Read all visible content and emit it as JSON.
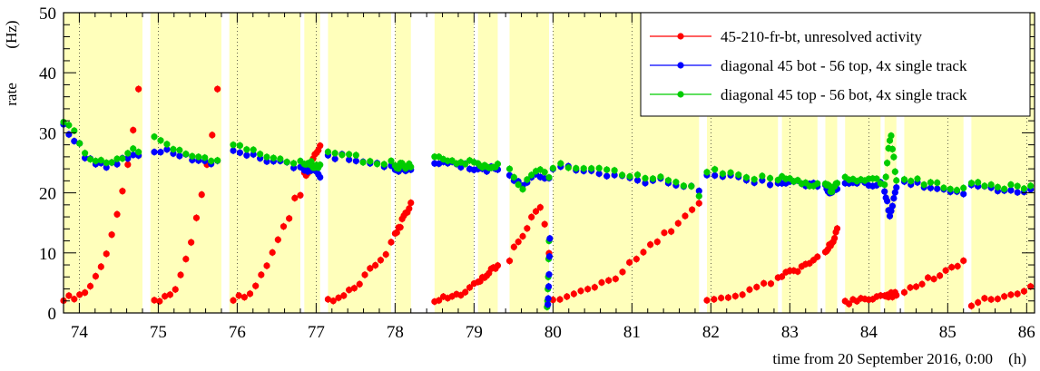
{
  "chart_data": {
    "type": "scatter",
    "title": "",
    "xlabel": "time from 20 September 2016, 0:00",
    "xunit": "(h)",
    "ylabel": "rate",
    "yunit": "(Hz)",
    "xlim": [
      73.8,
      86.1
    ],
    "ylim": [
      0,
      50
    ],
    "xticks": [
      74,
      75,
      76,
      77,
      78,
      79,
      80,
      81,
      82,
      83,
      84,
      85,
      86
    ],
    "yticks": [
      0,
      10,
      20,
      30,
      40,
      50
    ],
    "grid": "vertical dotted",
    "legend_position": "top-right",
    "background_bands": [
      [
        73.8,
        74.8
      ],
      [
        74.9,
        75.8
      ],
      [
        75.9,
        76.8
      ],
      [
        76.85,
        77.05
      ],
      [
        77.15,
        77.95
      ],
      [
        78.0,
        78.2
      ],
      [
        78.5,
        79.0
      ],
      [
        79.05,
        79.3
      ],
      [
        79.45,
        79.95
      ],
      [
        80.0,
        81.85
      ],
      [
        81.95,
        82.85
      ],
      [
        82.9,
        83.35
      ],
      [
        83.45,
        83.6
      ],
      [
        83.7,
        84.15
      ],
      [
        84.2,
        84.35
      ],
      [
        84.45,
        85.2
      ],
      [
        85.3,
        86.1
      ]
    ],
    "series": [
      {
        "name": "45-210-fr-bt, unresolved activity",
        "color": "#ff0000",
        "segments": [
          {
            "x0": 73.8,
            "x1": 74.75,
            "y": [
              2.5,
              2.5,
              2.7,
              3,
              3.5,
              4.5,
              6,
              8,
              10,
              13,
              16,
              20,
              25,
              30,
              37
            ]
          },
          {
            "x0": 74.95,
            "x1": 75.75,
            "y": [
              2.3,
              2.3,
              2.5,
              3,
              4,
              6,
              9,
              12,
              16,
              20,
              25,
              30,
              37
            ]
          },
          {
            "x0": 75.95,
            "x1": 76.8,
            "y": [
              2.3,
              2.5,
              3,
              3.5,
              4.5,
              6,
              8,
              10,
              12,
              14,
              16,
              19,
              20
            ]
          },
          {
            "x0": 76.85,
            "x1": 77.05,
            "y": [
              23,
              24,
              26,
              28
            ]
          },
          {
            "x0": 77.15,
            "x1": 77.95,
            "y": [
              2.2,
              2.3,
              2.5,
              3,
              3.5,
              4,
              5,
              6,
              7,
              8,
              9,
              10,
              11.5
            ]
          },
          {
            "x0": 78.0,
            "x1": 78.2,
            "y": [
              13,
              14,
              15,
              16,
              17,
              18.5
            ]
          },
          {
            "x0": 78.5,
            "x1": 79.0,
            "y": [
              2.2,
              2.3,
              2.5,
              2.8,
              3.2,
              3.8,
              4.5
            ]
          },
          {
            "x0": 79.05,
            "x1": 79.3,
            "y": [
              5,
              6,
              7,
              8
            ]
          },
          {
            "x0": 79.45,
            "x1": 79.95,
            "y": [
              9,
              11,
              12,
              13,
              15,
              17,
              18,
              15,
              10
            ]
          },
          {
            "x0": 80.0,
            "x1": 81.85,
            "y": [
              2,
              2.2,
              2.5,
              3,
              3.5,
              4,
              4.5,
              5,
              5.5,
              6,
              7,
              8,
              9,
              10,
              11,
              12,
              13,
              14,
              15,
              16,
              17,
              18
            ]
          },
          {
            "x0": 81.95,
            "x1": 82.85,
            "y": [
              2,
              2.2,
              2.5,
              2.8,
              3,
              3.3,
              3.6,
              4,
              4.5,
              5,
              5.5
            ]
          },
          {
            "x0": 82.9,
            "x1": 83.35,
            "y": [
              6,
              6.5,
              7,
              7.5,
              8,
              8.5,
              9
            ]
          },
          {
            "x0": 83.45,
            "x1": 83.6,
            "y": [
              10,
              11,
              12,
              14
            ]
          },
          {
            "x0": 83.7,
            "x1": 84.15,
            "y": [
              1.8,
              2,
              2,
              2.2,
              2.3,
              2.5
            ]
          },
          {
            "x0": 84.2,
            "x1": 84.35,
            "y": [
              2.5,
              3,
              3
            ]
          },
          {
            "x0": 84.45,
            "x1": 85.2,
            "y": [
              3.5,
              4,
              4.5,
              5,
              5.5,
              6,
              6.5,
              7,
              7.5,
              8,
              9
            ]
          },
          {
            "x0": 85.3,
            "x1": 86.05,
            "y": [
              1.6,
              1.8,
              2,
              2.2,
              2.5,
              2.8,
              3,
              3.3,
              3.6,
              4
            ]
          }
        ]
      },
      {
        "name": "diagonal 45 bot - 56 top, 4x single track",
        "color": "#0000ff",
        "segments": [
          {
            "x0": 73.8,
            "x1": 74.75,
            "y": [
              31,
              30,
              29,
              28,
              26,
              26,
              25,
              25,
              24.5,
              25,
              25,
              25.5,
              26,
              26.5,
              26.5
            ]
          },
          {
            "x0": 74.95,
            "x1": 75.75,
            "y": [
              27,
              27,
              27,
              26.5,
              26.5,
              26,
              25.5,
              25,
              25,
              25,
              25
            ]
          },
          {
            "x0": 75.95,
            "x1": 76.8,
            "y": [
              27,
              26.5,
              26,
              26,
              25.5,
              25.5,
              25,
              25,
              25,
              24.5,
              24
            ]
          },
          {
            "x0": 76.85,
            "x1": 77.05,
            "y": [
              24,
              24,
              23.5,
              23
            ]
          },
          {
            "x0": 77.15,
            "x1": 77.95,
            "y": [
              26.5,
              26,
              26,
              25.5,
              25.5,
              25,
              25,
              25,
              24.5,
              24.5
            ]
          },
          {
            "x0": 78.0,
            "x1": 78.2,
            "y": [
              24,
              24,
              24
            ]
          },
          {
            "x0": 78.5,
            "x1": 79.0,
            "y": [
              25,
              25,
              25,
              24.5,
              24.5,
              24
            ]
          },
          {
            "x0": 79.05,
            "x1": 79.3,
            "y": [
              24,
              24,
              24
            ]
          },
          {
            "x0": 79.45,
            "x1": 79.95,
            "y": [
              23,
              22,
              21,
              22,
              23,
              23,
              22
            ]
          },
          {
            "x0": 80.0,
            "x1": 81.85,
            "y": [
              24,
              24,
              24,
              24,
              23.5,
              23.5,
              23,
              23,
              23,
              22.5,
              22.5,
              22.5,
              22,
              22,
              22,
              21.5,
              21.5,
              21,
              21,
              20
            ]
          },
          {
            "x0": 81.95,
            "x1": 82.85,
            "y": [
              23,
              23,
              23,
              22.5,
              22.5,
              22,
              22,
              22,
              21.5,
              21.5
            ]
          },
          {
            "x0": 82.9,
            "x1": 83.35,
            "y": [
              22,
              22,
              21.5,
              21.5,
              21
            ]
          },
          {
            "x0": 83.45,
            "x1": 83.6,
            "y": [
              21,
              20,
              21
            ]
          },
          {
            "x0": 83.7,
            "x1": 84.15,
            "y": [
              22,
              22,
              22,
              21.5,
              21.5
            ]
          },
          {
            "x0": 84.2,
            "x1": 84.35,
            "y": [
              20,
              16,
              21
            ]
          },
          {
            "x0": 84.45,
            "x1": 85.2,
            "y": [
              22,
              21.5,
              21.5,
              21,
              21,
              20.5,
              20.5,
              20,
              20
            ]
          },
          {
            "x0": 85.3,
            "x1": 86.05,
            "y": [
              21,
              21,
              21,
              20.5,
              20.5,
              20.5,
              20.5,
              20.5,
              20.5
            ]
          }
        ]
      },
      {
        "name": "diagonal 45 top - 56 bot, 4x single track",
        "color": "#00cc00",
        "segments": [
          {
            "x0": 73.8,
            "x1": 74.75,
            "y": [
              31.5,
              31,
              30,
              28,
              26.5,
              26,
              25.5,
              25,
              25,
              25.5,
              25.5,
              26,
              26.5,
              27,
              27
            ]
          },
          {
            "x0": 74.95,
            "x1": 75.75,
            "y": [
              29,
              28.5,
              28,
              27.5,
              27,
              26.5,
              26,
              26,
              25.5,
              25.5,
              25.5
            ]
          },
          {
            "x0": 75.95,
            "x1": 76.8,
            "y": [
              28,
              28,
              27.5,
              27,
              26.5,
              26,
              26,
              25.5,
              25.5,
              25,
              25
            ]
          },
          {
            "x0": 76.85,
            "x1": 77.05,
            "y": [
              25,
              25,
              24.5,
              24.5
            ]
          },
          {
            "x0": 77.15,
            "x1": 77.95,
            "y": [
              27,
              26.5,
              26.5,
              26,
              26,
              25.5,
              25.5,
              25,
              25,
              25
            ]
          },
          {
            "x0": 78.0,
            "x1": 78.2,
            "y": [
              24.5,
              24.5,
              24.5
            ]
          },
          {
            "x0": 78.5,
            "x1": 79.0,
            "y": [
              26,
              25.5,
              25.5,
              25,
              25,
              25
            ]
          },
          {
            "x0": 79.05,
            "x1": 79.3,
            "y": [
              24.5,
              24.5,
              24.5
            ]
          },
          {
            "x0": 79.45,
            "x1": 79.95,
            "y": [
              24,
              22,
              21,
              23,
              24,
              24,
              23
            ]
          },
          {
            "x0": 80.0,
            "x1": 81.85,
            "y": [
              24.5,
              24.5,
              24.5,
              24.5,
              24,
              24,
              24,
              23.5,
              23.5,
              23,
              23,
              23,
              22.5,
              22.5,
              22.5,
              22,
              22,
              21.5,
              21,
              19
            ]
          },
          {
            "x0": 81.95,
            "x1": 82.85,
            "y": [
              23.5,
              23.5,
              23,
              23,
              23,
              22.5,
              22.5,
              22.5,
              22,
              22
            ]
          },
          {
            "x0": 82.9,
            "x1": 83.35,
            "y": [
              22.5,
              22,
              22,
              21.5,
              21.5
            ]
          },
          {
            "x0": 83.45,
            "x1": 83.6,
            "y": [
              21.5,
              20.5,
              21.5
            ]
          },
          {
            "x0": 83.7,
            "x1": 84.15,
            "y": [
              22.5,
              22.5,
              22,
              22,
              22
            ]
          },
          {
            "x0": 84.2,
            "x1": 84.35,
            "y": [
              21,
              30,
              22
            ]
          },
          {
            "x0": 84.45,
            "x1": 85.2,
            "y": [
              22.5,
              22,
              22,
              21.5,
              21.5,
              21,
              21,
              20.5,
              20.5
            ]
          },
          {
            "x0": 85.3,
            "x1": 86.05,
            "y": [
              21.5,
              21.5,
              21,
              21,
              21,
              21,
              21,
              21,
              21
            ]
          }
        ]
      }
    ],
    "dip_points": [
      {
        "x": 79.95,
        "y": [
          12,
          9,
          6,
          4,
          2,
          1
        ]
      }
    ]
  }
}
